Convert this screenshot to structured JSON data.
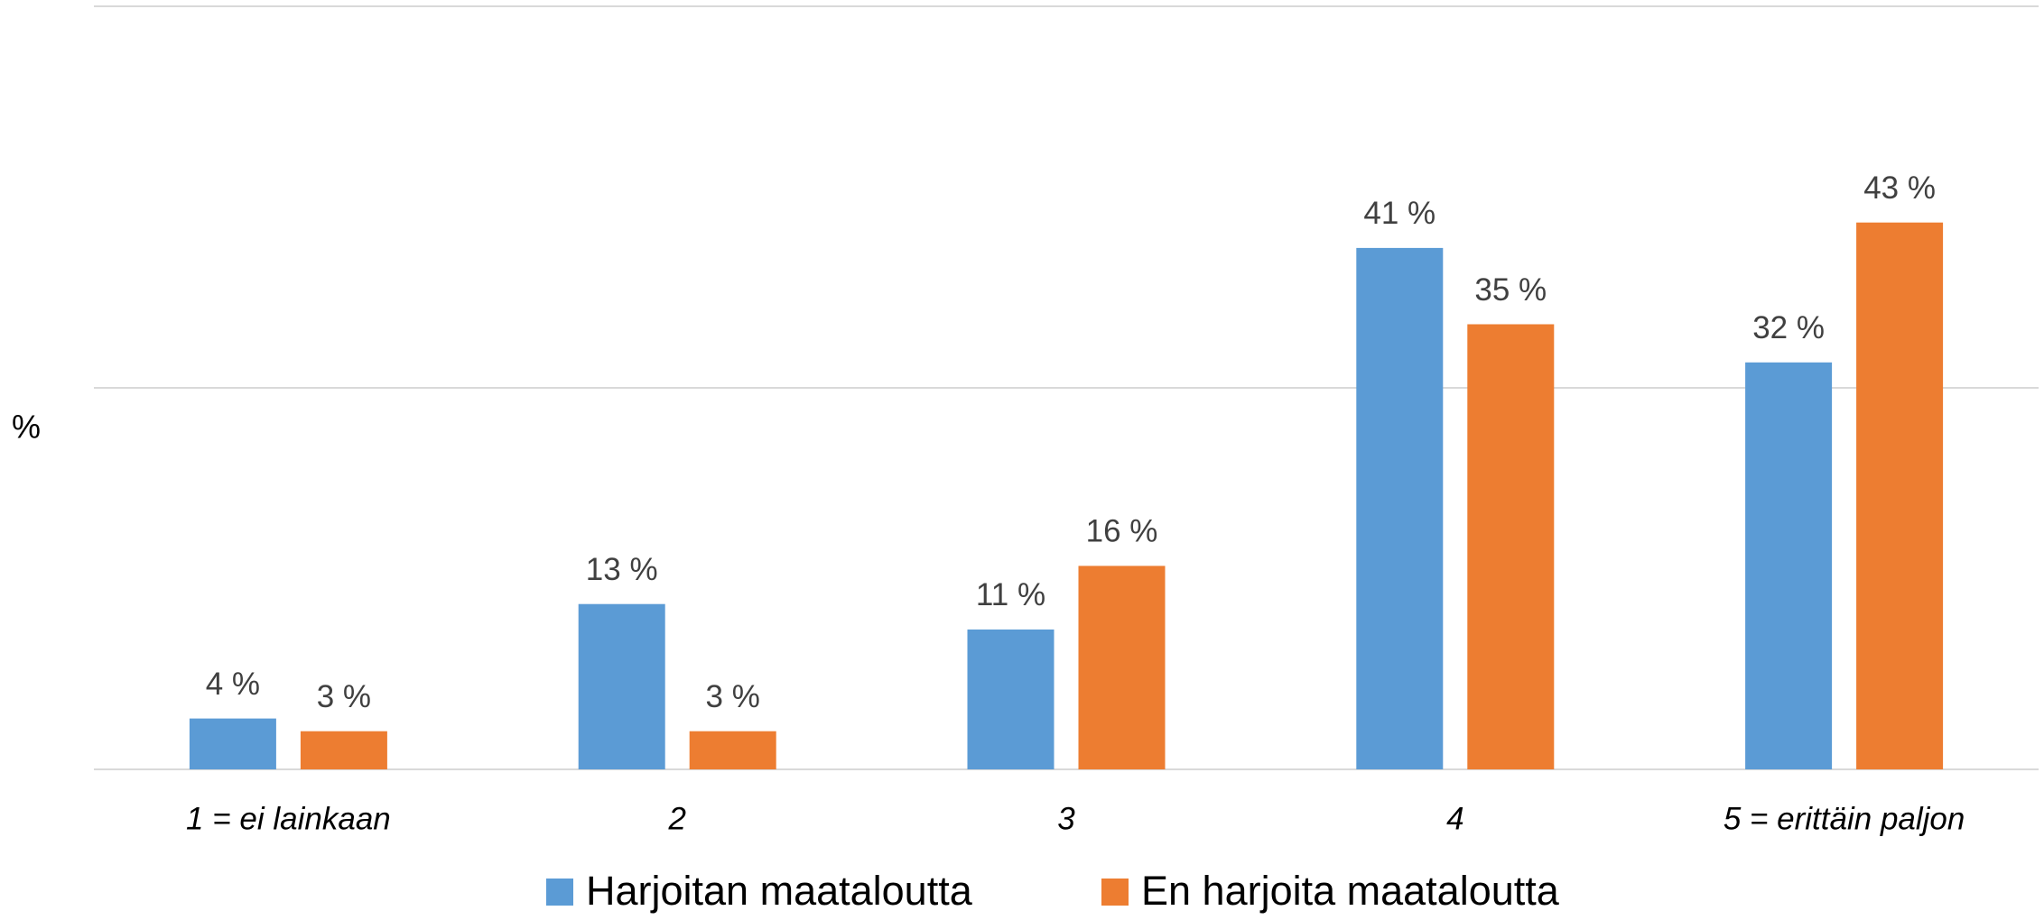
{
  "chart_data": {
    "type": "bar",
    "y_label": "%",
    "categories": [
      "1 = ei lainkaan",
      "2",
      "3",
      "4",
      "5 = erittäin paljon"
    ],
    "series": [
      {
        "name": "Harjoitan maataloutta",
        "color": "#5b9bd5",
        "values": [
          4,
          13,
          11,
          41,
          32
        ],
        "value_labels": [
          "4 %",
          "13 %",
          "11 %",
          "41 %",
          "32 %"
        ]
      },
      {
        "name": "En harjoita maataloutta",
        "color": "#ed7d31",
        "values": [
          3,
          3,
          16,
          35,
          43
        ],
        "value_labels": [
          "3 %",
          "3 %",
          "16 %",
          "35 %",
          "43 %"
        ]
      }
    ],
    "ylim": [
      0,
      60
    ],
    "yticks": [
      0,
      30,
      60
    ],
    "grid": true,
    "legend": "bottom"
  }
}
